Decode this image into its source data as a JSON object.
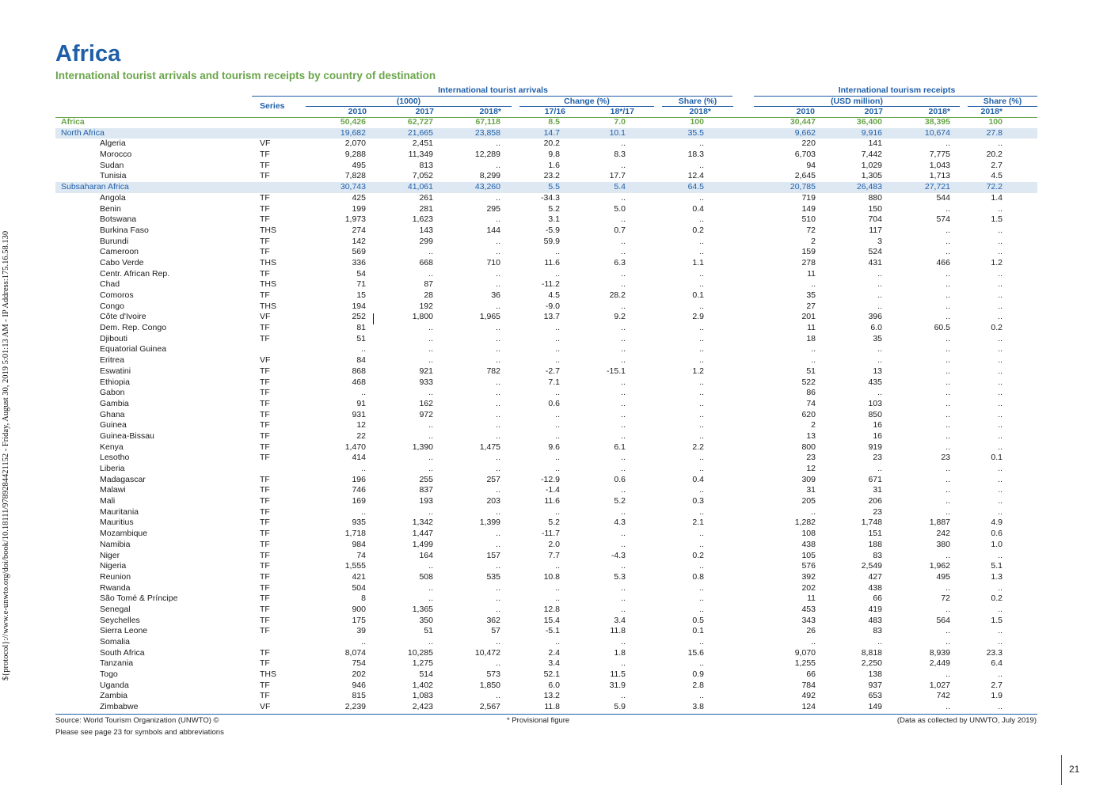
{
  "page": {
    "title": "Africa",
    "subtitle": "International tourist arrivals and tourism receipts by country of destination",
    "side_text": "${protocol}://www.e-unwto.org/doi/book/10.18111/9789284421152 - Friday, August 30, 2019 5:01:13 AM - IP Address:175.16.58.130",
    "page_number": "21"
  },
  "header": {
    "arrivals_group": "International tourist arrivals",
    "receipts_group": "International tourism receipts",
    "series": "Series",
    "units_arrivals": "(1000)",
    "change": "Change (%)",
    "share": "Share (%)",
    "units_receipts": "(USD million)",
    "share_receipts": "Share (%)",
    "cols": [
      "2010",
      "2017",
      "2018*",
      "17/16",
      "18*/17",
      "2018*",
      "2010",
      "2017",
      "2018*",
      "2018*"
    ]
  },
  "rows": [
    {
      "type": "total",
      "name": "Africa",
      "series": "",
      "values": [
        "50,426",
        "62,727",
        "67,118",
        "8.5",
        "7.0",
        "100",
        "30,447",
        "36,400",
        "38,395",
        "100"
      ]
    },
    {
      "type": "region",
      "name": "North Africa",
      "series": "",
      "values": [
        "19,682",
        "21,665",
        "23,858",
        "14.7",
        "10.1",
        "35.5",
        "9,662",
        "9,916",
        "10,674",
        "27.8"
      ]
    },
    {
      "type": "country",
      "name": "Algeria",
      "series": "VF",
      "values": [
        "2,070",
        "2,451",
        "..",
        "20.2",
        "..",
        "..",
        "220",
        "141",
        "..",
        ".."
      ]
    },
    {
      "type": "country",
      "name": "Morocco",
      "series": "TF",
      "values": [
        "9,288",
        "11,349",
        "12,289",
        "9.8",
        "8.3",
        "18.3",
        "6,703",
        "7,442",
        "7,775",
        "20.2"
      ]
    },
    {
      "type": "country",
      "name": "Sudan",
      "series": "TF",
      "values": [
        "495",
        "813",
        "..",
        "1.6",
        "..",
        "..",
        "94",
        "1,029",
        "1,043",
        "2.7"
      ]
    },
    {
      "type": "country",
      "name": "Tunisia",
      "series": "TF",
      "values": [
        "7,828",
        "7,052",
        "8,299",
        "23.2",
        "17.7",
        "12.4",
        "2,645",
        "1,305",
        "1,713",
        "4.5"
      ]
    },
    {
      "type": "region",
      "name": "Subsaharan Africa",
      "series": "",
      "values": [
        "30,743",
        "41,061",
        "43,260",
        "5.5",
        "5.4",
        "64.5",
        "20,785",
        "26,483",
        "27,721",
        "72.2"
      ]
    },
    {
      "type": "country",
      "name": "Angola",
      "series": "TF",
      "values": [
        "425",
        "261",
        "..",
        "-34.3",
        "..",
        "..",
        "719",
        "880",
        "544",
        "1.4"
      ]
    },
    {
      "type": "country",
      "name": "Benin",
      "series": "TF",
      "values": [
        "199",
        "281",
        "295",
        "5.2",
        "5.0",
        "0.4",
        "149",
        "150",
        "..",
        ".."
      ]
    },
    {
      "type": "country",
      "name": "Botswana",
      "series": "TF",
      "values": [
        "1,973",
        "1,623",
        "..",
        "3.1",
        "..",
        "..",
        "510",
        "704",
        "574",
        "1.5"
      ]
    },
    {
      "type": "country",
      "name": "Burkina Faso",
      "series": "THS",
      "values": [
        "274",
        "143",
        "144",
        "-5.9",
        "0.7",
        "0.2",
        "72",
        "117",
        "..",
        ".."
      ]
    },
    {
      "type": "country",
      "name": "Burundi",
      "series": "TF",
      "values": [
        "142",
        "299",
        "..",
        "59.9",
        "..",
        "..",
        "2",
        "3",
        "..",
        ".."
      ]
    },
    {
      "type": "country",
      "name": "Cameroon",
      "series": "TF",
      "values": [
        "569",
        "..",
        "..",
        "..",
        "..",
        "..",
        "159",
        "524",
        "..",
        ".."
      ]
    },
    {
      "type": "country",
      "name": "Cabo Verde",
      "series": "THS",
      "values": [
        "336",
        "668",
        "710",
        "11.6",
        "6.3",
        "1.1",
        "278",
        "431",
        "466",
        "1.2"
      ]
    },
    {
      "type": "country",
      "name": "Centr. African Rep.",
      "series": "TF",
      "values": [
        "54",
        "..",
        "..",
        "..",
        "..",
        "..",
        "11",
        "..",
        "..",
        ".."
      ]
    },
    {
      "type": "country",
      "name": "Chad",
      "series": "THS",
      "values": [
        "71",
        "87",
        "..",
        "-11.2",
        "..",
        "..",
        "..",
        "..",
        "..",
        ".."
      ]
    },
    {
      "type": "country",
      "name": "Comoros",
      "series": "TF",
      "values": [
        "15",
        "28",
        "36",
        "4.5",
        "28.2",
        "0.1",
        "35",
        "..",
        "..",
        ".."
      ]
    },
    {
      "type": "country",
      "name": "Congo",
      "series": "THS",
      "values": [
        "194",
        "192",
        "..",
        "-9.0",
        "..",
        "..",
        "27",
        "..",
        "..",
        ".."
      ]
    },
    {
      "type": "country",
      "name": "Côte d'Ivoire",
      "series": "VF",
      "values": [
        "252",
        "1,800",
        "1,965",
        "13.7",
        "9.2",
        "2.9",
        "201",
        "396",
        "..",
        ".."
      ]
    },
    {
      "type": "country",
      "name": "Dem. Rep. Congo",
      "series": "TF",
      "values": [
        "81",
        "..",
        "..",
        "..",
        "..",
        "..",
        "11",
        "6.0",
        "60.5",
        "0.2"
      ]
    },
    {
      "type": "country",
      "name": "Djibouti",
      "series": "TF",
      "values": [
        "51",
        "..",
        "..",
        "..",
        "..",
        "..",
        "18",
        "35",
        "..",
        ".."
      ]
    },
    {
      "type": "country",
      "name": "Equatorial Guinea",
      "series": "",
      "values": [
        "..",
        "..",
        "..",
        "..",
        "..",
        "..",
        "..",
        "..",
        "..",
        ".."
      ]
    },
    {
      "type": "country",
      "name": "Eritrea",
      "series": "VF",
      "values": [
        "84",
        "..",
        "..",
        "..",
        "..",
        "..",
        "..",
        "..",
        "..",
        ".."
      ]
    },
    {
      "type": "country",
      "name": "Eswatini",
      "series": "TF",
      "values": [
        "868",
        "921",
        "782",
        "-2.7",
        "-15.1",
        "1.2",
        "51",
        "13",
        "..",
        ".."
      ]
    },
    {
      "type": "country",
      "name": "Ethiopia",
      "series": "TF",
      "values": [
        "468",
        "933",
        "..",
        "7.1",
        "..",
        "..",
        "522",
        "435",
        "..",
        ".."
      ]
    },
    {
      "type": "country",
      "name": "Gabon",
      "series": "TF",
      "values": [
        "..",
        "..",
        "..",
        "..",
        "..",
        "..",
        "86",
        "..",
        "..",
        ".."
      ]
    },
    {
      "type": "country",
      "name": "Gambia",
      "series": "TF",
      "values": [
        "91",
        "162",
        "..",
        "0.6",
        "..",
        "..",
        "74",
        "103",
        "..",
        ".."
      ]
    },
    {
      "type": "country",
      "name": "Ghana",
      "series": "TF",
      "values": [
        "931",
        "972",
        "..",
        "..",
        "..",
        "..",
        "620",
        "850",
        "..",
        ".."
      ]
    },
    {
      "type": "country",
      "name": "Guinea",
      "series": "TF",
      "values": [
        "12",
        "..",
        "..",
        "..",
        "..",
        "..",
        "2",
        "16",
        "..",
        ".."
      ]
    },
    {
      "type": "country",
      "name": "Guinea-Bissau",
      "series": "TF",
      "values": [
        "22",
        "..",
        "..",
        "..",
        "..",
        "..",
        "13",
        "16",
        "..",
        ".."
      ]
    },
    {
      "type": "country",
      "name": "Kenya",
      "series": "TF",
      "values": [
        "1,470",
        "1,390",
        "1,475",
        "9.6",
        "6.1",
        "2.2",
        "800",
        "919",
        "..",
        ".."
      ]
    },
    {
      "type": "country",
      "name": "Lesotho",
      "series": "TF",
      "values": [
        "414",
        "..",
        "..",
        "..",
        "..",
        "..",
        "23",
        "23",
        "23",
        "0.1"
      ]
    },
    {
      "type": "country",
      "name": "Liberia",
      "series": "",
      "values": [
        "..",
        "..",
        "..",
        "..",
        "..",
        "..",
        "12",
        "..",
        "..",
        ".."
      ]
    },
    {
      "type": "country",
      "name": "Madagascar",
      "series": "TF",
      "values": [
        "196",
        "255",
        "257",
        "-12.9",
        "0.6",
        "0.4",
        "309",
        "671",
        "..",
        ".."
      ]
    },
    {
      "type": "country",
      "name": "Malawi",
      "series": "TF",
      "values": [
        "746",
        "837",
        "..",
        "-1.4",
        "..",
        "..",
        "31",
        "31",
        "..",
        ".."
      ]
    },
    {
      "type": "country",
      "name": "Mali",
      "series": "TF",
      "values": [
        "169",
        "193",
        "203",
        "11.6",
        "5.2",
        "0.3",
        "205",
        "206",
        "..",
        ".."
      ]
    },
    {
      "type": "country",
      "name": "Mauritania",
      "series": "TF",
      "values": [
        "..",
        "..",
        "..",
        "..",
        "..",
        "..",
        "..",
        "23",
        "..",
        ".."
      ]
    },
    {
      "type": "country",
      "name": "Mauritius",
      "series": "TF",
      "values": [
        "935",
        "1,342",
        "1,399",
        "5.2",
        "4.3",
        "2.1",
        "1,282",
        "1,748",
        "1,887",
        "4.9"
      ]
    },
    {
      "type": "country",
      "name": "Mozambique",
      "series": "TF",
      "values": [
        "1,718",
        "1,447",
        "..",
        "-11.7",
        "..",
        "..",
        "108",
        "151",
        "242",
        "0.6"
      ]
    },
    {
      "type": "country",
      "name": "Namibia",
      "series": "TF",
      "values": [
        "984",
        "1,499",
        "..",
        "2.0",
        "..",
        "..",
        "438",
        "188",
        "380",
        "1.0"
      ]
    },
    {
      "type": "country",
      "name": "Niger",
      "series": "TF",
      "values": [
        "74",
        "164",
        "157",
        "7.7",
        "-4.3",
        "0.2",
        "105",
        "83",
        "..",
        ".."
      ]
    },
    {
      "type": "country",
      "name": "Nigeria",
      "series": "TF",
      "values": [
        "1,555",
        "..",
        "..",
        "..",
        "..",
        "..",
        "576",
        "2,549",
        "1,962",
        "5.1"
      ]
    },
    {
      "type": "country",
      "name": "Reunion",
      "series": "TF",
      "values": [
        "421",
        "508",
        "535",
        "10.8",
        "5.3",
        "0.8",
        "392",
        "427",
        "495",
        "1.3"
      ]
    },
    {
      "type": "country",
      "name": "Rwanda",
      "series": "TF",
      "values": [
        "504",
        "..",
        "..",
        "..",
        "..",
        "..",
        "202",
        "438",
        "..",
        ".."
      ]
    },
    {
      "type": "country",
      "name": "São Tomé & Príncipe",
      "series": "TF",
      "values": [
        "8",
        "..",
        "..",
        "..",
        "..",
        "..",
        "11",
        "66",
        "72",
        "0.2"
      ]
    },
    {
      "type": "country",
      "name": "Senegal",
      "series": "TF",
      "values": [
        "900",
        "1,365",
        "..",
        "12.8",
        "..",
        "..",
        "453",
        "419",
        "..",
        ".."
      ]
    },
    {
      "type": "country",
      "name": "Seychelles",
      "series": "TF",
      "values": [
        "175",
        "350",
        "362",
        "15.4",
        "3.4",
        "0.5",
        "343",
        "483",
        "564",
        "1.5"
      ]
    },
    {
      "type": "country",
      "name": "Sierra Leone",
      "series": "TF",
      "values": [
        "39",
        "51",
        "57",
        "-5.1",
        "11.8",
        "0.1",
        "26",
        "83",
        "..",
        ".."
      ]
    },
    {
      "type": "country",
      "name": "Somalia",
      "series": "",
      "values": [
        "..",
        "..",
        "..",
        "..",
        "..",
        "..",
        "..",
        "..",
        "..",
        ".."
      ]
    },
    {
      "type": "country",
      "name": "South Africa",
      "series": "TF",
      "values": [
        "8,074",
        "10,285",
        "10,472",
        "2.4",
        "1.8",
        "15.6",
        "9,070",
        "8,818",
        "8,939",
        "23.3"
      ]
    },
    {
      "type": "country",
      "name": "Tanzania",
      "series": "TF",
      "values": [
        "754",
        "1,275",
        "..",
        "3.4",
        "..",
        "..",
        "1,255",
        "2,250",
        "2,449",
        "6.4"
      ]
    },
    {
      "type": "country",
      "name": "Togo",
      "series": "THS",
      "values": [
        "202",
        "514",
        "573",
        "52.1",
        "11.5",
        "0.9",
        "66",
        "138",
        "..",
        ".."
      ]
    },
    {
      "type": "country",
      "name": "Uganda",
      "series": "TF",
      "values": [
        "946",
        "1,402",
        "1,850",
        "6.0",
        "31.9",
        "2.8",
        "784",
        "937",
        "1,027",
        "2.7"
      ]
    },
    {
      "type": "country",
      "name": "Zambia",
      "series": "TF",
      "values": [
        "815",
        "1,083",
        "..",
        "13.2",
        "..",
        "..",
        "492",
        "653",
        "742",
        "1.9"
      ]
    },
    {
      "type": "country",
      "name": "Zimbabwe",
      "series": "VF",
      "values": [
        "2,239",
        "2,423",
        "2,567",
        "11.8",
        "5.9",
        "3.8",
        "124",
        "149",
        "..",
        ".."
      ]
    }
  ],
  "footer": {
    "source": "Source: World Tourism Organization (UNWTO) ©",
    "provisional": "* Provisional figure",
    "collected": "(Data as collected by UNWTO, July 2019)",
    "symbols": "Please see page 23 for symbols and abbreviations"
  },
  "colors": {
    "blue": "#1f5fa8",
    "green": "#6aa54a",
    "region_bg": "#dde8f3"
  }
}
